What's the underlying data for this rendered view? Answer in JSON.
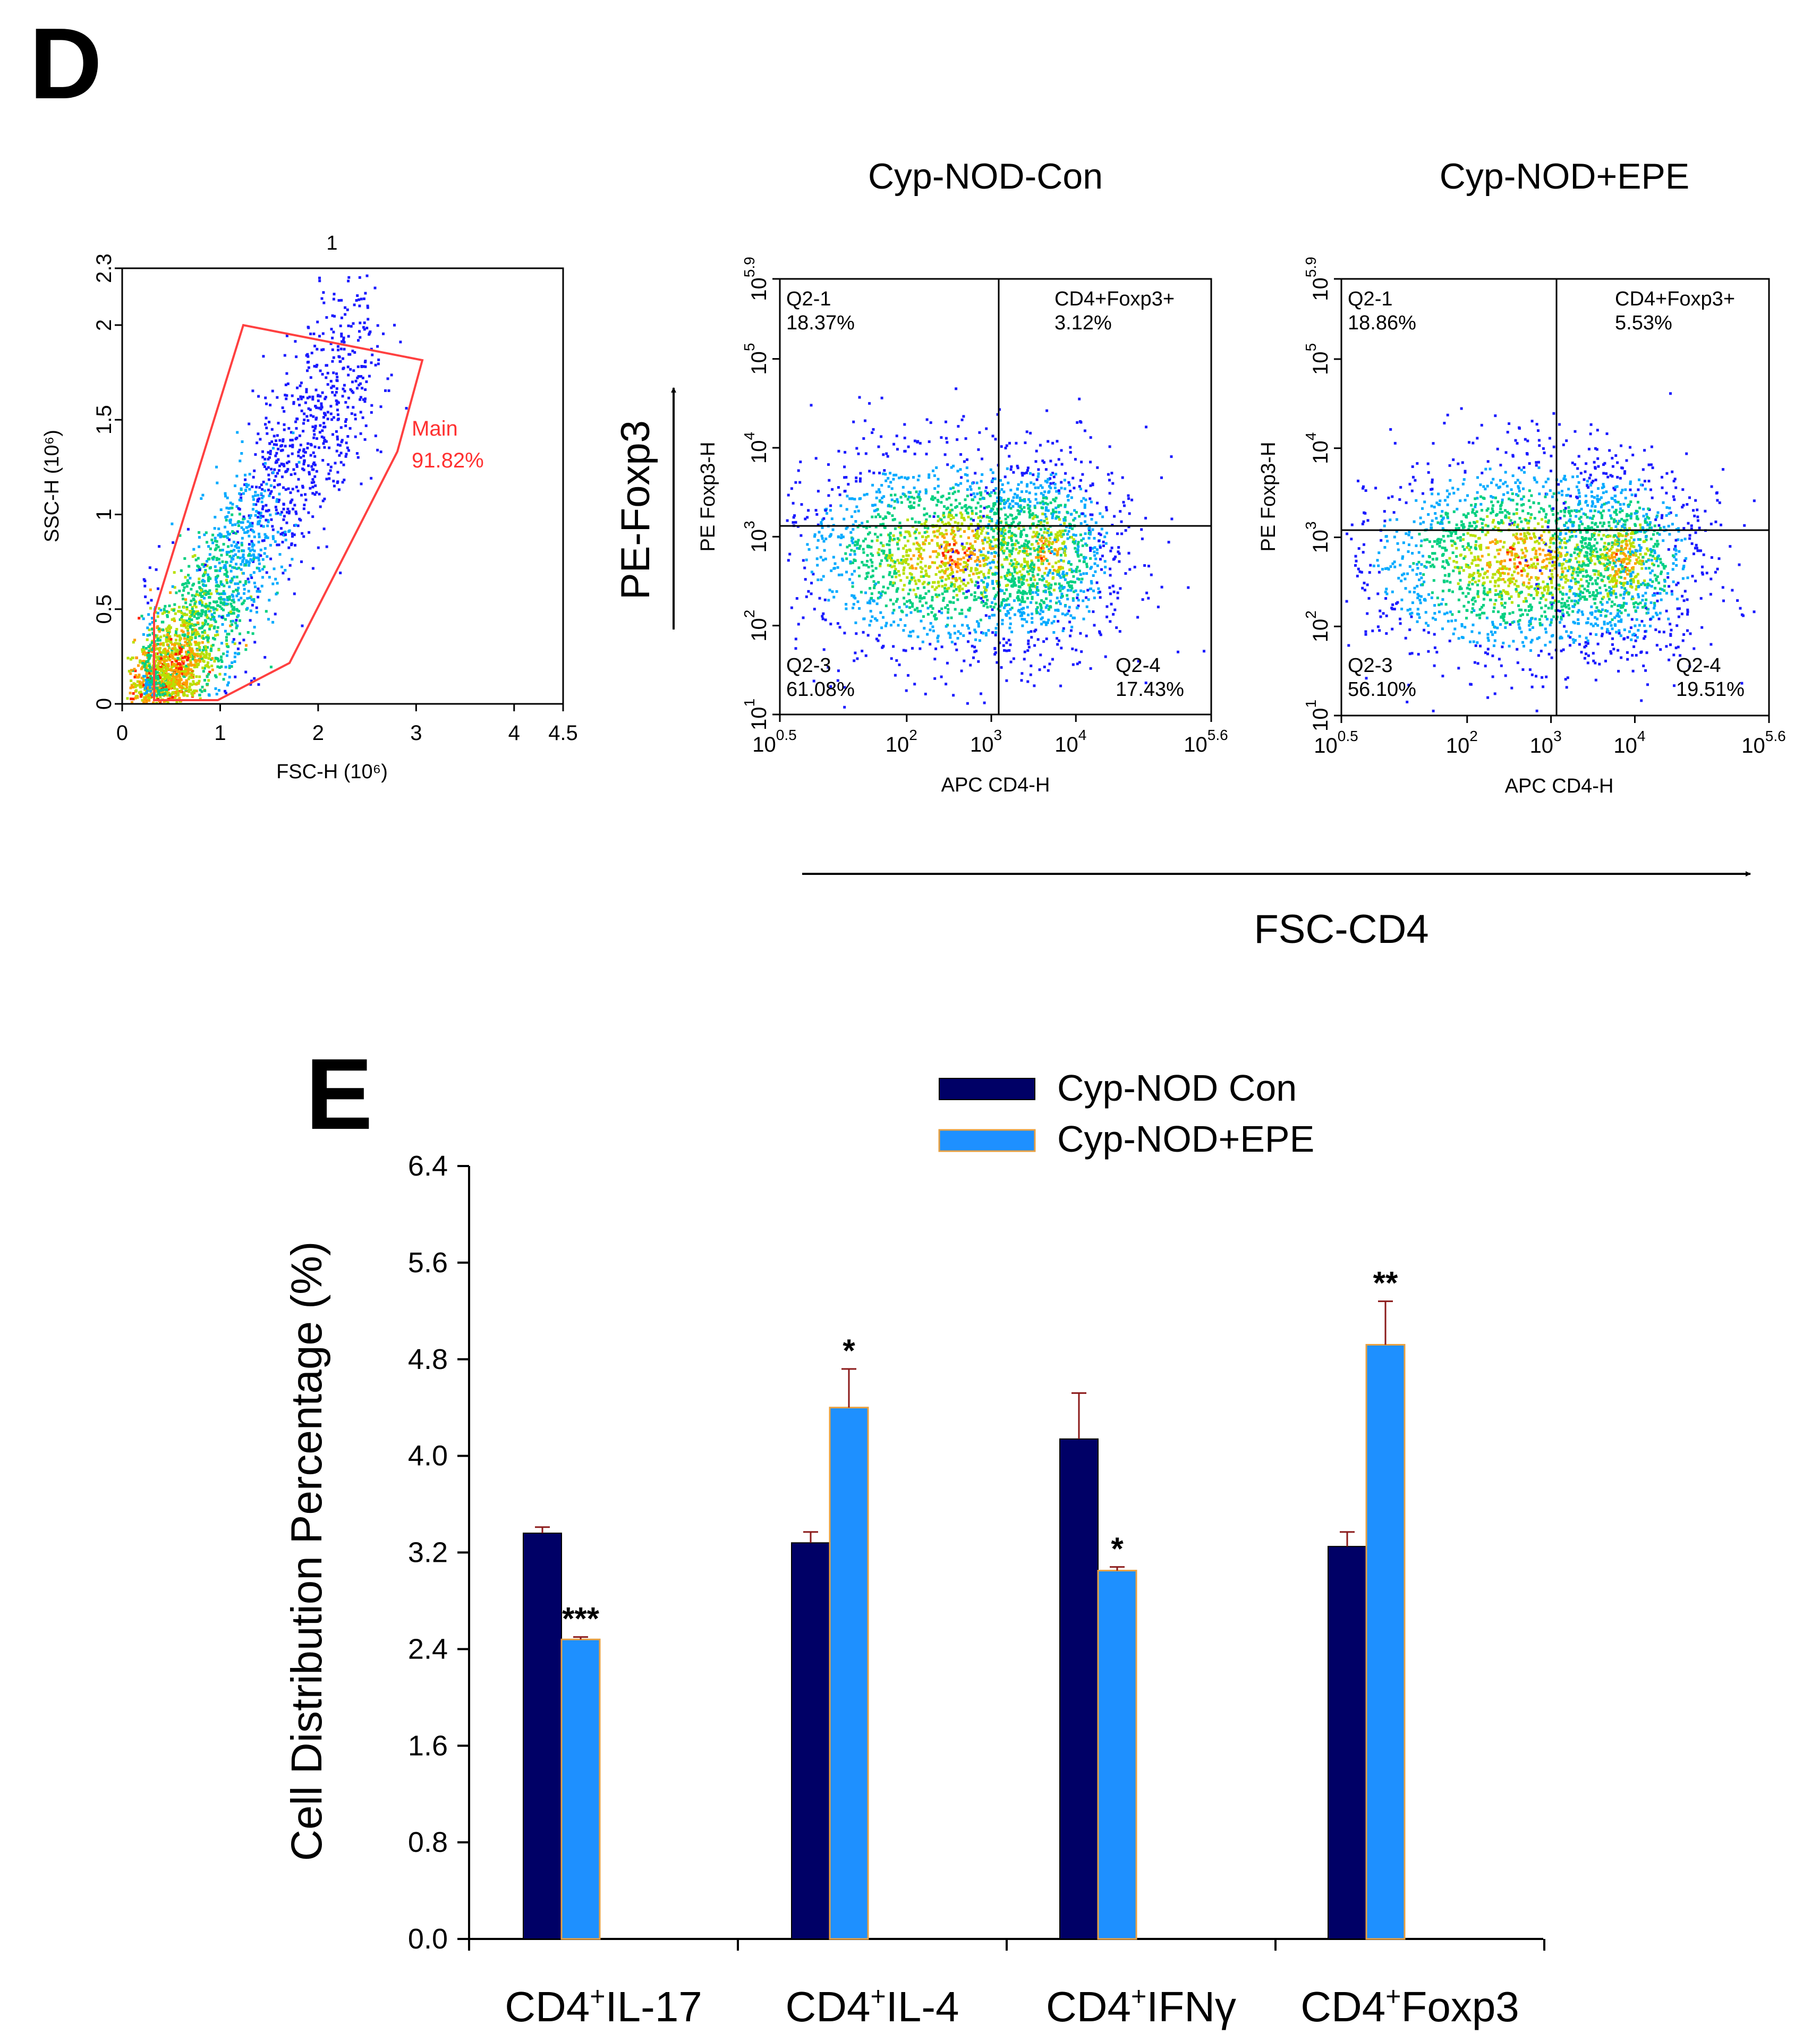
{
  "panel_d": {
    "letter": "D",
    "gating_plot": {
      "title": "1",
      "xlabel": "FSC-H (10⁶)",
      "ylabel": "SSC-H (10⁶)",
      "xticks": [
        "0",
        "1",
        "2",
        "3",
        "4",
        "4.5"
      ],
      "yticks": [
        "0",
        "0.5",
        "1",
        "1.5",
        "2",
        "2.3"
      ],
      "gate_name": "Main",
      "gate_pct": "91.82%"
    },
    "dot_plots": [
      {
        "title": "Cyp-NOD-Con",
        "xlabel": "APC CD4-H",
        "ylabel": "PE Foxp3-H",
        "quadrants": {
          "ul_name": "Q2-1",
          "ul_pct": "18.37%",
          "ur_name": "CD4+Foxp3+",
          "ur_pct": "3.12%",
          "ll_name": "Q2-3",
          "ll_pct": "61.08%",
          "lr_name": "Q2-4",
          "lr_pct": "17.43%"
        }
      },
      {
        "title": "Cyp-NOD+EPE",
        "xlabel": "APC CD4-H",
        "ylabel": "PE Foxp3-H",
        "quadrants": {
          "ul_name": "Q2-1",
          "ul_pct": "18.86%",
          "ur_name": "CD4+Foxp3+",
          "ur_pct": "5.53%",
          "ll_name": "Q2-3",
          "ll_pct": "56.10%",
          "lr_name": "Q2-4",
          "lr_pct": "19.51%"
        }
      }
    ],
    "dot_xticks": [
      {
        "base": "10",
        "exp": "0.5"
      },
      {
        "base": "10",
        "exp": "2"
      },
      {
        "base": "10",
        "exp": "3"
      },
      {
        "base": "10",
        "exp": "4"
      },
      {
        "base": "10",
        "exp": "5.6"
      }
    ],
    "dot_yticks": [
      {
        "base": "10",
        "exp": "1"
      },
      {
        "base": "10",
        "exp": "2"
      },
      {
        "base": "10",
        "exp": "3"
      },
      {
        "base": "10",
        "exp": "4"
      },
      {
        "base": "10",
        "exp": "5"
      },
      {
        "base": "10",
        "exp": "5.9"
      }
    ],
    "y_arrow_label": "PE-Foxp3",
    "x_arrow_label": "FSC-CD4"
  },
  "chart_data": {
    "type": "bar",
    "panel_letter": "E",
    "title": "",
    "xlabel": "",
    "ylabel": "Cell Distribution Percentage (%)",
    "ylim": [
      0,
      6.4
    ],
    "yticks": [
      "0.0",
      "0.8",
      "1.6",
      "2.4",
      "3.2",
      "4.0",
      "4.8",
      "5.6",
      "6.4"
    ],
    "categories": [
      {
        "pre": "CD4",
        "sup": "+",
        "post": "IL-17"
      },
      {
        "pre": "CD4",
        "sup": "+",
        "post": "IL-4"
      },
      {
        "pre": "CD4",
        "sup": "+",
        "post": "IFNγ"
      },
      {
        "pre": "CD4",
        "sup": "+",
        "post": "Foxp3"
      }
    ],
    "series": [
      {
        "name": "Cyp-NOD Con",
        "color": "#000066",
        "values": [
          3.36,
          3.28,
          4.14,
          3.25
        ],
        "errors": [
          0.05,
          0.09,
          0.38,
          0.12
        ],
        "significance": [
          "",
          "",
          "",
          ""
        ]
      },
      {
        "name": "Cyp-NOD+EPE",
        "color": "#1e90ff",
        "values": [
          2.48,
          4.4,
          3.05,
          4.92
        ],
        "errors": [
          0.02,
          0.32,
          0.03,
          0.36
        ],
        "significance": [
          "***",
          "*",
          "*",
          "**"
        ]
      }
    ],
    "error_color": "#8b1a1a"
  }
}
